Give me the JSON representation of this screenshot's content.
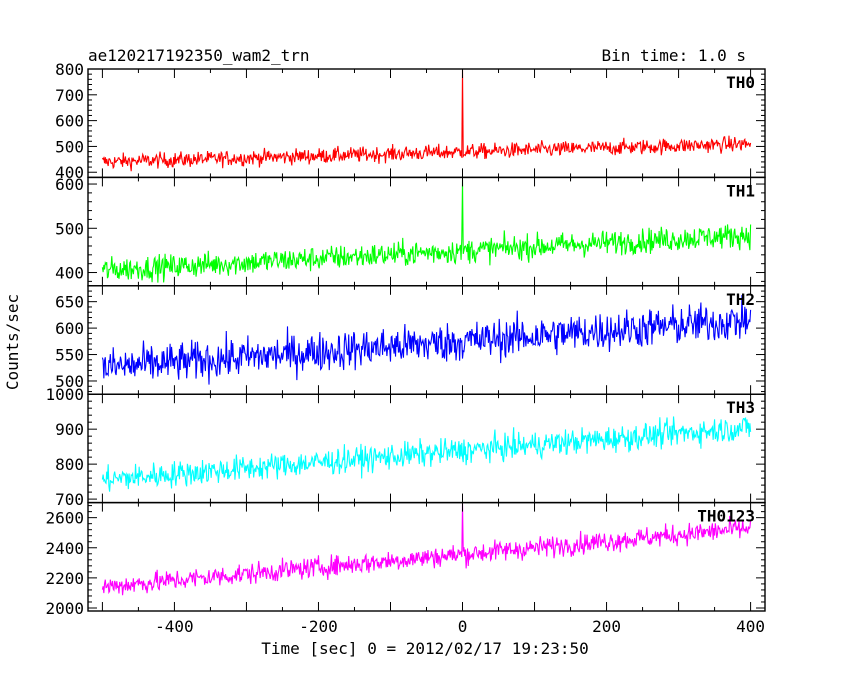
{
  "header": {
    "title": "ae120217192350_wam2_trn",
    "bin_time": "Bin time: 1.0 s"
  },
  "chart_data": {
    "type": "line",
    "xlabel": "Time [sec] 0 = 2012/02/17 19:23:50",
    "ylabel": "Counts/sec",
    "xlim": [
      -520,
      420
    ],
    "x_ticks": [
      -400,
      -200,
      0,
      200,
      400
    ],
    "x_minor_step": 50,
    "x_range": [
      -500,
      400
    ],
    "x_step": 1,
    "grid": false,
    "panels": [
      {
        "name": "TH0",
        "color": "#ff0000",
        "ylim": [
          380,
          800
        ],
        "y_ticks": [
          400,
          500,
          600,
          700,
          800
        ],
        "trend": {
          "start": 440,
          "end": 510
        },
        "noise": 32,
        "spike": {
          "x": 0,
          "peak": 800
        }
      },
      {
        "name": "TH1",
        "color": "#00ff00",
        "ylim": [
          370,
          615
        ],
        "y_ticks": [
          400,
          500,
          600
        ],
        "trend": {
          "start": 405,
          "end": 485
        },
        "noise": 30,
        "spike": {
          "x": 0,
          "peak": 610
        }
      },
      {
        "name": "TH2",
        "color": "#0000ff",
        "ylim": [
          475,
          680
        ],
        "y_ticks": [
          500,
          550,
          600,
          650
        ],
        "trend": {
          "start": 525,
          "end": 615
        },
        "noise": 40,
        "spike": null
      },
      {
        "name": "TH3",
        "color": "#00ffff",
        "ylim": [
          690,
          1000
        ],
        "y_ticks": [
          700,
          800,
          900,
          1000
        ],
        "trend": {
          "start": 755,
          "end": 905
        },
        "noise": 40,
        "spike": null
      },
      {
        "name": "TH0123",
        "color": "#ff00ff",
        "ylim": [
          1980,
          2700
        ],
        "y_ticks": [
          2000,
          2200,
          2400,
          2600
        ],
        "trend": {
          "start": 2140,
          "end": 2530
        },
        "noise": 75,
        "spike": {
          "x": 0,
          "peak": 2700
        }
      }
    ]
  }
}
